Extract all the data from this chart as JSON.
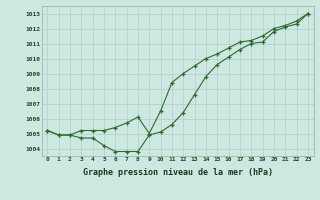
{
  "line1_x": [
    0,
    1,
    2,
    3,
    4,
    5,
    6,
    7,
    8,
    9,
    10,
    11,
    12,
    13,
    14,
    15,
    16,
    17,
    18,
    19,
    20,
    21,
    22,
    23
  ],
  "line1_y": [
    1005.2,
    1004.9,
    1004.9,
    1004.7,
    1004.7,
    1004.2,
    1003.8,
    1003.8,
    1003.8,
    1004.9,
    1005.1,
    1005.6,
    1006.4,
    1007.6,
    1008.8,
    1009.6,
    1010.1,
    1010.6,
    1011.0,
    1011.1,
    1011.8,
    1012.1,
    1012.3,
    1013.0
  ],
  "line2_x": [
    0,
    1,
    2,
    3,
    4,
    5,
    6,
    7,
    8,
    9,
    10,
    11,
    12,
    13,
    14,
    15,
    16,
    17,
    18,
    19,
    20,
    21,
    22,
    23
  ],
  "line2_y": [
    1005.2,
    1004.9,
    1004.9,
    1005.2,
    1005.2,
    1005.2,
    1005.4,
    1005.7,
    1006.1,
    1005.0,
    1006.5,
    1008.4,
    1009.0,
    1009.5,
    1010.0,
    1010.3,
    1010.7,
    1011.1,
    1011.2,
    1011.5,
    1012.0,
    1012.2,
    1012.5,
    1013.0
  ],
  "line_color": "#2d6a2d",
  "bg_color": "#cce8e0",
  "grid_color": "#b0cfca",
  "xlabel": "Graphe pression niveau de la mer (hPa)",
  "ylim": [
    1003.5,
    1013.5
  ],
  "xlim": [
    -0.5,
    23.5
  ],
  "yticks": [
    1004,
    1005,
    1006,
    1007,
    1008,
    1009,
    1010,
    1011,
    1012,
    1013
  ],
  "xticks": [
    0,
    1,
    2,
    3,
    4,
    5,
    6,
    7,
    8,
    9,
    10,
    11,
    12,
    13,
    14,
    15,
    16,
    17,
    18,
    19,
    20,
    21,
    22,
    23
  ]
}
